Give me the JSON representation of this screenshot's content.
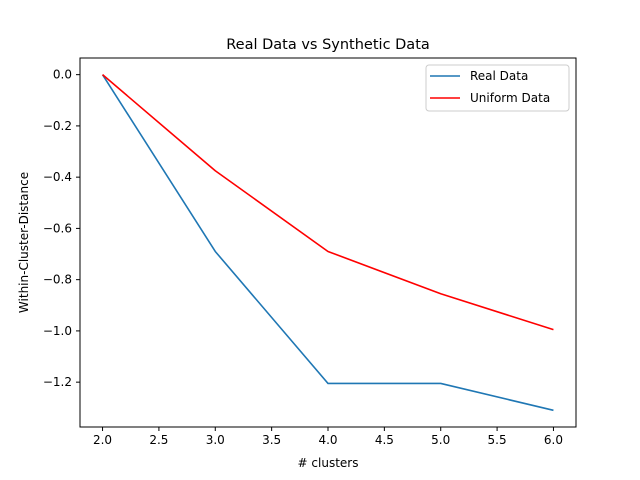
{
  "chart_data": {
    "type": "line",
    "title": "Real Data vs Synthetic Data",
    "xlabel": "# clusters",
    "ylabel": "Within-Cluster-Distance",
    "xlim": [
      1.8,
      6.2
    ],
    "ylim": [
      -1.375,
      0.065
    ],
    "xticks": [
      2.0,
      2.5,
      3.0,
      3.5,
      4.0,
      4.5,
      5.0,
      5.5,
      6.0
    ],
    "yticks": [
      0.0,
      -0.2,
      -0.4,
      -0.6,
      -0.8,
      -1.0,
      -1.2
    ],
    "xtick_labels": [
      "2.0",
      "2.5",
      "3.0",
      "3.5",
      "4.0",
      "4.5",
      "5.0",
      "5.5",
      "6.0"
    ],
    "ytick_labels": [
      "0.0",
      "−0.2",
      "−0.4",
      "−0.6",
      "−0.8",
      "−1.0",
      "−1.2"
    ],
    "grid": false,
    "legend_position": "top-right",
    "x": [
      2,
      3,
      4,
      5,
      6
    ],
    "series": [
      {
        "name": "Real Data",
        "color": "#1f77b4",
        "values": [
          0.0,
          -0.69,
          -1.205,
          -1.205,
          -1.31
        ]
      },
      {
        "name": "Uniform Data",
        "color": "#ff0000",
        "values": [
          0.0,
          -0.375,
          -0.69,
          -0.855,
          -0.995
        ]
      }
    ]
  }
}
